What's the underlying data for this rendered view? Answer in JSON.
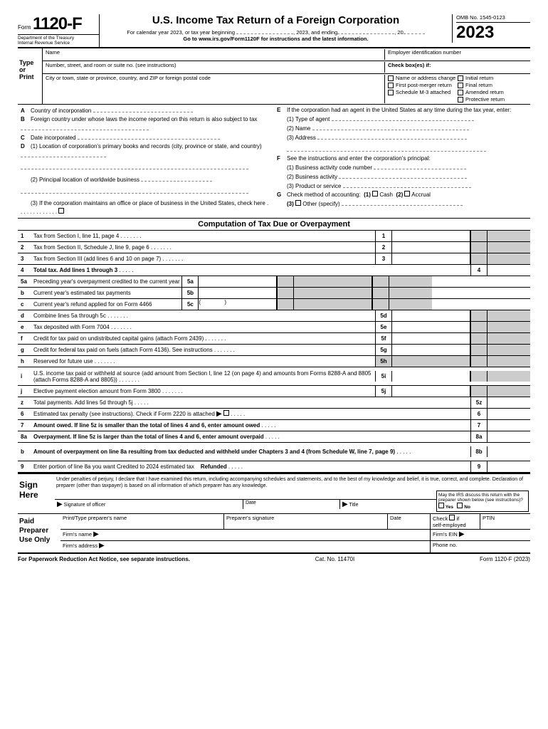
{
  "header": {
    "form_label": "Form",
    "form_number": "1120-F",
    "dept": "Department of the Treasury",
    "irs": "Internal Revenue Service",
    "title": "U.S. Income Tax Return of a Foreign Corporation",
    "calendar": "For calendar year 2023, or tax year beginning",
    "cal_mid": ", 2023, and ending",
    "cal_end": ", 20",
    "goto": "Go to www.irs.gov/Form1120F for instructions and the latest information.",
    "omb": "OMB No. 1545-0123",
    "year": "23",
    "year_prefix": "20"
  },
  "top": {
    "type_print": "Type\nor\nPrint",
    "name": "Name",
    "ein": "Employer identification number",
    "addr": "Number, street, and room or suite no. (see instructions)",
    "city": "City or town, state or province, country, and ZIP or foreign postal code",
    "checkboxes": "Check box(es) if:",
    "cb1": "Name or address change",
    "cb2": "First post-merger return",
    "cb3": "Schedule M-3 attached",
    "cb4": "Initial return",
    "cb5": "Final return",
    "cb6": "Amended return",
    "cb7": "Protective return"
  },
  "secA": {
    "A": "Country of incorporation",
    "B": "Foreign country under whose laws the income reported on this return is also subject to tax",
    "C": "Date incorporated",
    "D1": "(1) Location of corporation's primary books and records (city, province or state, and country)",
    "D2": "(2) Principal location of worldwide business",
    "D3": "(3) If the corporation maintains an office or place of business in the United States, check here"
  },
  "secE": {
    "E": "If the corporation had an agent in the United States at any time during the tax year, enter:",
    "E1": "(1) Type of agent",
    "E2": "(2) Name",
    "E3": "(3) Address",
    "F": "See the instructions and enter the corporation's principal:",
    "F1": "(1) Business activity code number",
    "F2": "(2) Business activity",
    "F3": "(3) Product or service",
    "G": "Check method of accounting:",
    "G1": "(1)",
    "G1l": "Cash",
    "G2": "(2)",
    "G2l": "Accrual",
    "G3": "(3)",
    "G3l": "Other (specify)"
  },
  "comp_title": "Computation of Tax Due or Overpayment",
  "lines": [
    {
      "n": "1",
      "d": "Tax from Section I, line 11, page 4",
      "m": "1"
    },
    {
      "n": "2",
      "d": "Tax from Section II, Schedule J, line 9, page 6",
      "m": "2"
    },
    {
      "n": "3",
      "d": "Tax from Section III (add lines 6 and 10 on page 7)",
      "m": "3"
    },
    {
      "n": "4",
      "d": "Total tax. Add lines 1 through 3",
      "r": "4",
      "bold": true
    },
    {
      "n": "5a",
      "d": "Preceding year's overpayment credited to the current year",
      "x": "5a"
    },
    {
      "n": "b",
      "d": "Current year's estimated tax payments",
      "x": "5b"
    },
    {
      "n": "c",
      "d": "Current year's refund applied for on Form 4466",
      "x": "5c",
      "paren": true
    },
    {
      "n": "d",
      "d": "Combine lines 5a through 5c",
      "m": "5d"
    },
    {
      "n": "e",
      "d": "Tax deposited with Form 7004",
      "m": "5e"
    },
    {
      "n": "f",
      "d": "Credit for tax paid on undistributed capital gains (attach Form 2439)",
      "m": "5f"
    },
    {
      "n": "g",
      "d": "Credit for federal tax paid on fuels (attach Form 4136). See instructions",
      "m": "5g"
    },
    {
      "n": "h",
      "d": "Reserved for future use",
      "m": "5h",
      "mgray": true
    },
    {
      "n": "i",
      "d": "U.S. income tax paid or withheld at source (add amount from Section I, line 12 (on page 4) and amounts from Forms 8288-A and 8805 (attach Forms 8288-A and 8805))",
      "m": "5i",
      "tall": true
    },
    {
      "n": "j",
      "d": "Elective payment election amount from Form 3800",
      "m": "5j"
    },
    {
      "n": "z",
      "d": "Total payments. Add lines 5d through 5j",
      "r": "5z"
    },
    {
      "n": "6",
      "d": "Estimated tax penalty (see instructions). Check if Form 2220 is attached",
      "r": "6",
      "cb": true
    },
    {
      "n": "7",
      "d": "Amount owed. If line 5z is smaller than the total of lines 4 and 6, enter amount owed",
      "r": "7",
      "bold": true
    },
    {
      "n": "8a",
      "d": "Overpayment. If line 5z is larger than the total of lines 4 and 6, enter amount overpaid",
      "r": "8a",
      "bold": true
    },
    {
      "n": "b",
      "d": "Amount of overpayment on line 8a resulting from tax deducted and withheld under Chapters 3 and 4 (from Schedule W, line 7, page 9)",
      "r": "8b",
      "bold": true,
      "tall": true
    },
    {
      "n": "9",
      "d": "Enter portion of line 8a you want Credited to 2024 estimated tax",
      "r": "9",
      "refund": "Refunded"
    }
  ],
  "sign": {
    "title": "Sign Here",
    "perjury": "Under penalties of perjury, I declare that I have examined this return, including accompanying schedules and statements, and to the best of my knowledge and belief, it is true, correct, and complete. Declaration of preparer (other than taxpayer) is based on all information of which preparer has any knowledge.",
    "sig_officer": "Signature of officer",
    "date": "Date",
    "title_f": "Title",
    "irs_q": "May the IRS discuss this return with the preparer shown below (see instructions)?",
    "yes": "Yes",
    "no": "No"
  },
  "prep": {
    "title": "Paid Preparer Use Only",
    "name": "Print/Type preparer's name",
    "sig": "Preparer's signature",
    "date": "Date",
    "check": "Check",
    "if": "if",
    "self": "self-employed",
    "ptin": "PTIN",
    "firm": "Firm's name",
    "ein": "Firm's EIN",
    "addr": "Firm's address",
    "phone": "Phone no."
  },
  "footer": {
    "notice": "For Paperwork Reduction Act Notice, see separate instructions.",
    "cat": "Cat. No. 11470I",
    "form": "Form 1120-F (2023)"
  }
}
